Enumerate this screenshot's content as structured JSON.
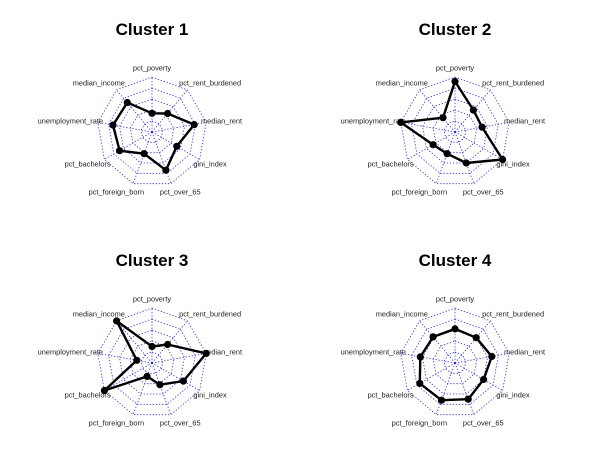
{
  "chart_data": [
    {
      "type": "radar",
      "title": "Cluster 1",
      "axes": [
        "pct_poverty",
        "pct_rent_burdened",
        "median_rent",
        "gini_index",
        "pct_over_65",
        "pct_foreign_born",
        "pct_bachelors",
        "unemployment_rate",
        "median_income"
      ],
      "values": [
        0.34,
        0.44,
        0.78,
        0.52,
        0.74,
        0.42,
        0.68,
        0.72,
        0.7
      ],
      "rmax": 1,
      "rings": 5,
      "grid": true,
      "grid_color": "#2b2bd6",
      "line_color": "#000000"
    },
    {
      "type": "radar",
      "title": "Cluster 2",
      "axes": [
        "pct_poverty",
        "pct_rent_burdened",
        "median_rent",
        "gini_index",
        "pct_over_65",
        "pct_foreign_born",
        "pct_bachelors",
        "unemployment_rate",
        "median_income"
      ],
      "values": [
        0.92,
        0.52,
        0.5,
        1.0,
        0.6,
        0.42,
        0.46,
        1.0,
        0.34
      ],
      "rmax": 1,
      "rings": 5,
      "grid": true,
      "grid_color": "#2b2bd6",
      "line_color": "#000000"
    },
    {
      "type": "radar",
      "title": "Cluster 3",
      "axes": [
        "pct_poverty",
        "pct_rent_burdened",
        "median_rent",
        "gini_index",
        "pct_over_65",
        "pct_foreign_born",
        "pct_bachelors",
        "unemployment_rate",
        "median_income"
      ],
      "values": [
        0.3,
        0.44,
        1.0,
        0.66,
        0.42,
        0.26,
        1.0,
        0.28,
        1.0
      ],
      "rmax": 1,
      "rings": 5,
      "grid": true,
      "grid_color": "#2b2bd6",
      "line_color": "#000000"
    },
    {
      "type": "radar",
      "title": "Cluster 4",
      "axes": [
        "pct_poverty",
        "pct_rent_burdened",
        "median_rent",
        "gini_index",
        "pct_over_65",
        "pct_foreign_born",
        "pct_bachelors",
        "unemployment_rate",
        "median_income"
      ],
      "values": [
        0.62,
        0.6,
        0.68,
        0.6,
        0.7,
        0.72,
        0.74,
        0.64,
        0.62
      ],
      "rmax": 1,
      "rings": 5,
      "grid": true,
      "grid_color": "#2b2bd6",
      "line_color": "#000000"
    }
  ]
}
